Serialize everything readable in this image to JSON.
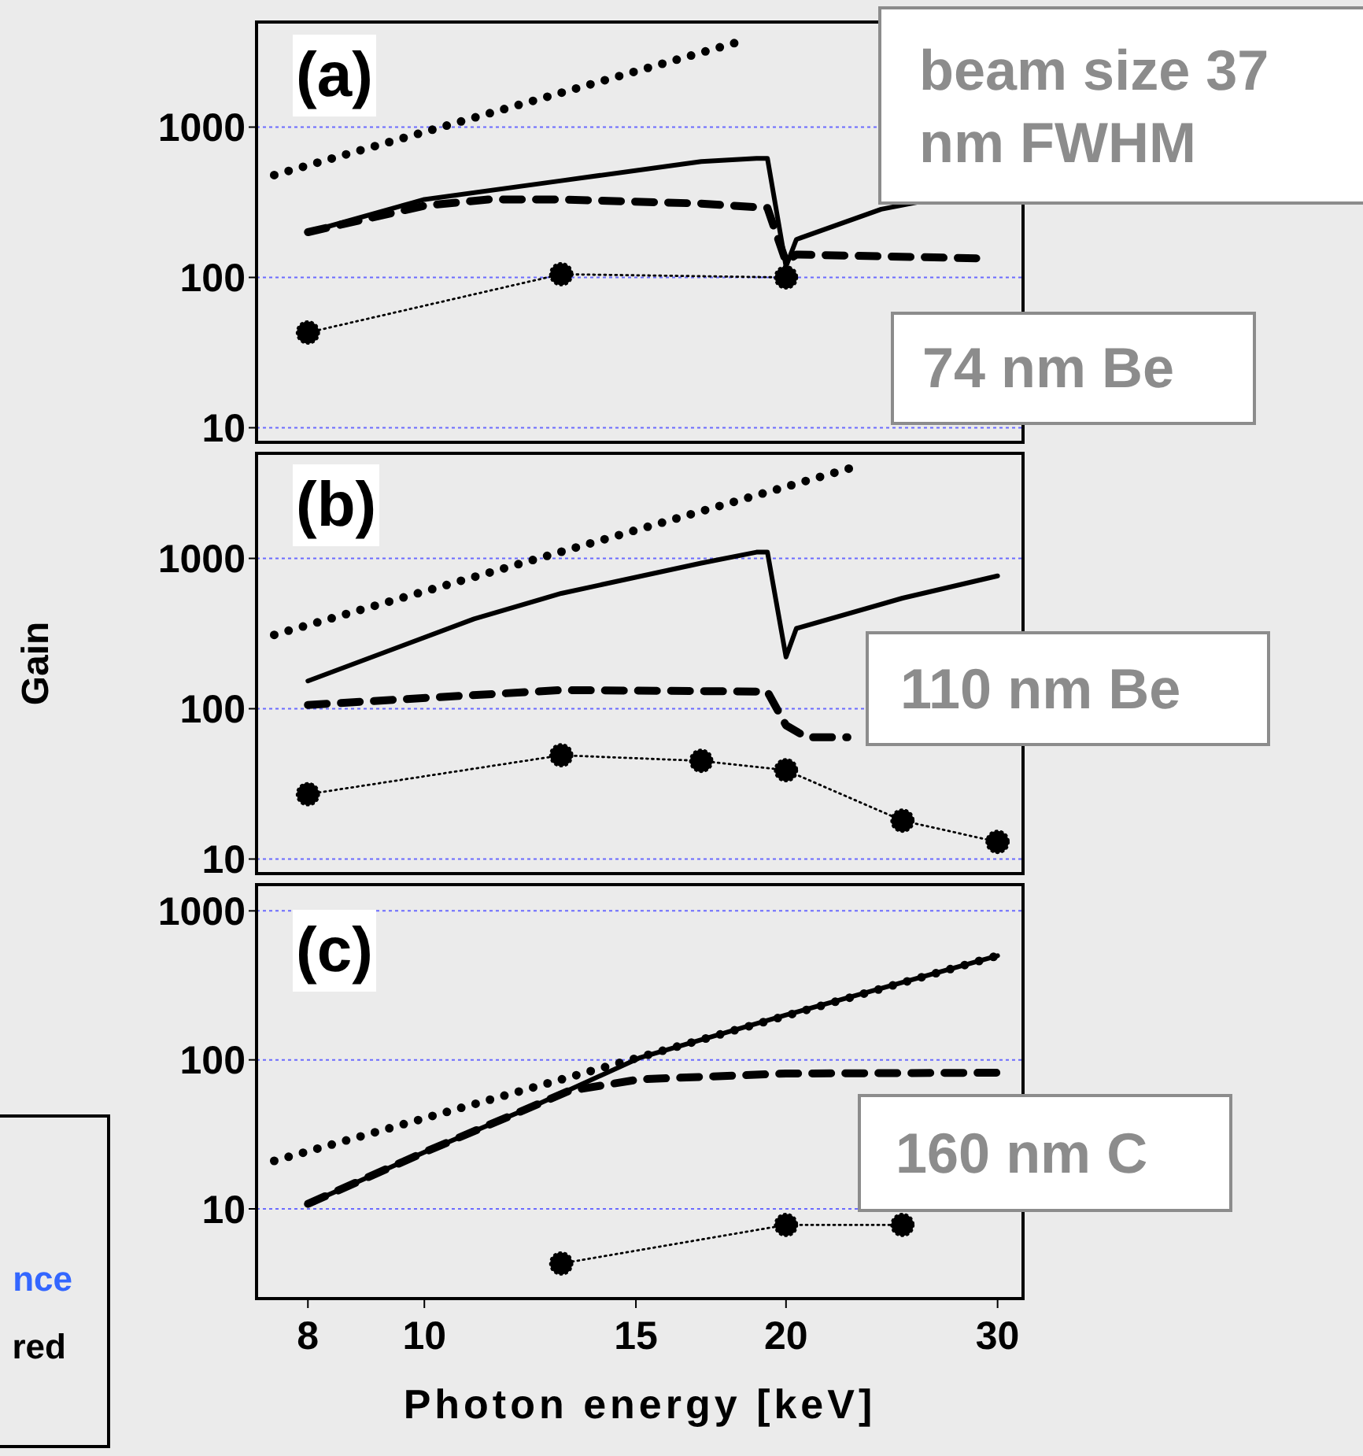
{
  "chart_data": [
    {
      "type": "line",
      "xlim": [
        7.25,
        31.5
      ],
      "ylim": [
        8,
        5000
      ],
      "xticks": [
        8,
        10,
        15,
        20,
        30
      ],
      "yticks": [
        10,
        100,
        1000
      ],
      "log": "xy",
      "grid": "y",
      "tick_labels": "y",
      "annotations": [
        "(a)",
        "beam size 37 nm FWHM",
        "74 nm Be"
      ],
      "series": [
        {
          "type": "line",
          "line_style": "dotted",
          "marker": "none",
          "color": "#000000",
          "x": [
            7.5,
            18.5
          ],
          "values": [
            480,
            3800
          ]
        },
        {
          "type": "line",
          "line_style": "solid",
          "marker": "none",
          "color": "#000000",
          "x": [
            8,
            10,
            13,
            17,
            18.9,
            19.3,
            20,
            20.4,
            24,
            25.9
          ],
          "values": [
            200,
            330,
            440,
            590,
            620,
            620,
            118,
            179,
            284,
            320
          ]
        },
        {
          "type": "line",
          "line_style": "dashed",
          "marker": "none",
          "color": "#000000",
          "x": [
            8,
            10,
            11.3,
            13,
            17,
            19.3,
            20,
            20.4,
            28.8
          ],
          "values": [
            200,
            300,
            330,
            330,
            310,
            290,
            127,
            142,
            134
          ]
        },
        {
          "type": "line",
          "line_style": "dotted",
          "marker": "circle",
          "color": "#000000",
          "x": [
            8,
            13,
            20
          ],
          "values": [
            43,
            105,
            100
          ]
        }
      ]
    },
    {
      "type": "line",
      "xlim": [
        7.25,
        31.5
      ],
      "ylim": [
        8,
        5000
      ],
      "xticks": [
        8,
        10,
        15,
        20,
        30
      ],
      "yticks": [
        10,
        100,
        1000
      ],
      "log": "xy",
      "grid": "y",
      "tick_labels": "y",
      "ylabel": "Gain",
      "annotations": [
        "(b)",
        "110 nm Be"
      ],
      "series": [
        {
          "type": "line",
          "line_style": "dotted",
          "marker": "none",
          "color": "#000000",
          "x": [
            7.5,
            22.9
          ],
          "values": [
            310,
            4100
          ]
        },
        {
          "type": "line",
          "line_style": "solid",
          "marker": "none",
          "color": "#000000",
          "x": [
            8,
            11,
            13,
            17,
            18.9,
            19.3,
            20,
            20.4,
            25,
            30
          ],
          "values": [
            153,
            396,
            585,
            930,
            1100,
            1100,
            221,
            342,
            544,
            765
          ]
        },
        {
          "type": "line",
          "line_style": "dashed",
          "marker": "none",
          "color": "#000000",
          "x": [
            8,
            10.2,
            13,
            19.3,
            20,
            20.8,
            22.5
          ],
          "values": [
            106,
            119,
            133,
            130,
            77.5,
            64.5,
            64.5
          ]
        },
        {
          "type": "line",
          "line_style": "dotted",
          "marker": "circle",
          "color": "#000000",
          "x": [
            8,
            13,
            17,
            20,
            25,
            30
          ],
          "values": [
            27,
            49,
            45,
            39,
            18,
            13
          ]
        }
      ]
    },
    {
      "type": "line",
      "xlim": [
        7.25,
        31.5
      ],
      "ylim": [
        2.5,
        1500
      ],
      "xticks": [
        8,
        10,
        15,
        20,
        30
      ],
      "yticks": [
        10,
        100,
        1000
      ],
      "log": "xy",
      "grid": "y",
      "xlabel": "Photon energy [keV]",
      "annotations": [
        "(c)",
        "160 nm C",
        "nce",
        "red"
      ],
      "series": [
        {
          "type": "line",
          "line_style": "dotted",
          "marker": "none",
          "color": "#000000",
          "x": [
            7.5,
            30
          ],
          "values": [
            21,
            500
          ]
        },
        {
          "type": "line",
          "line_style": "solid",
          "marker": "none",
          "color": "#000000",
          "x": [
            8,
            10,
            12.4,
            15.1,
            20,
            30
          ],
          "values": [
            10.8,
            24,
            50,
            103,
            200,
            500
          ]
        },
        {
          "type": "line",
          "line_style": "dashed",
          "marker": "none",
          "color": "#000000",
          "x": [
            8,
            10,
            12.4,
            13.2,
            15.1,
            20,
            30
          ],
          "values": [
            10.8,
            24,
            50,
            62,
            74,
            81,
            82
          ]
        },
        {
          "type": "line",
          "line_style": "dotted",
          "marker": "circle",
          "color": "#000000",
          "x": [
            13,
            20,
            25
          ],
          "values": [
            4.3,
            7.8,
            7.8
          ]
        }
      ]
    }
  ]
}
